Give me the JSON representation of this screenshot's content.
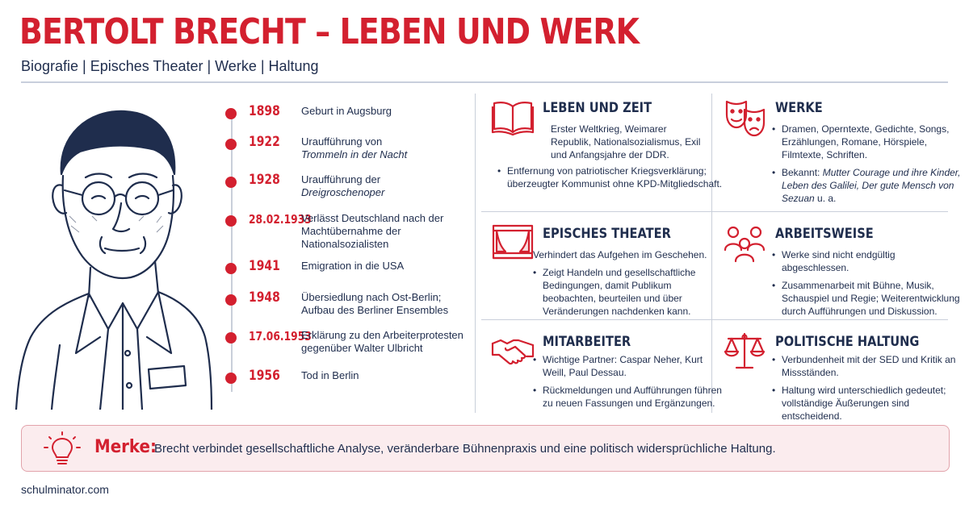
{
  "header": {
    "title": "BERTOLT BRECHT – LEBEN UND WERK",
    "subtitle": "Biografie | Episches Theater | Werke | Haltung"
  },
  "timeline": [
    {
      "year": "1898",
      "text": "Geburt in Augsburg",
      "italic": ""
    },
    {
      "year": "1922",
      "text": "Uraufführung von",
      "italic": "Trommeln in der Nacht"
    },
    {
      "year": "1928",
      "text": "Uraufführung der",
      "italic": "Dreigroschenoper"
    },
    {
      "year": "28.02.1933",
      "text": "Verlässt Deutschland nach der Machtübernahme der Nationalsozialisten",
      "italic": ""
    },
    {
      "year": "1941",
      "text": "Emigration in die USA",
      "italic": ""
    },
    {
      "year": "1948",
      "text": "Übersiedlung nach Ost-Berlin; Aufbau des Berliner Ensembles",
      "italic": ""
    },
    {
      "year": "17.06.1953",
      "text": "Erklärung zu den Arbeiterprotesten gegenüber Walter Ulbricht",
      "italic": ""
    },
    {
      "year": "1956",
      "text": "Tod in Berlin",
      "italic": ""
    }
  ],
  "cards": {
    "leben": {
      "title": "LEBEN UND ZEIT",
      "intro": "Erster Weltkrieg, Weimarer Republik, Nationalsozialismus, Exil und Anfangsjahre der DDR.",
      "bullet1": "Entfernung von patriotischer Kriegsverklärung; überzeugter Kommunist ohne KPD-Mitgliedschaft."
    },
    "werke": {
      "title": "WERKE",
      "bullet1": "Dramen, Operntexte, Gedichte, Songs, Erzählungen, Romane, Hörspiele, Filmtexte, Schriften.",
      "bullet2_prefix": "Bekannt: ",
      "bullet2_italic": "Mutter Courage und ihre Kinder, Leben des Galilei, Der gute Mensch von Sezuan",
      "bullet2_suffix": " u. a."
    },
    "episch": {
      "title": "EPISCHES THEATER",
      "intro": "Verhindert das Aufgehen im Geschehen.",
      "bullet1": "Zeigt Handeln und gesellschaftliche Bedingungen, damit Publikum beobachten, beurteilen und über Veränderungen nachdenken kann."
    },
    "arbeit": {
      "title": "ARBEITSWEISE",
      "bullet1": "Werke sind nicht endgültig abgeschlessen.",
      "bullet2": "Zusammenarbeit mit Bühne, Musik, Schauspiel und Regie; Weiterentwicklung durch Aufführungen und Diskussion."
    },
    "mitarbeiter": {
      "title": "MITARBEITER",
      "bullet1": "Wichtige Partner: Caspar Neher, Kurt Weill, Paul Dessau.",
      "bullet2": "Rückmeldungen und Aufführungen führen zu neuen Fassungen und Ergänzungen."
    },
    "politik": {
      "title": "POLITISCHE HALTUNG",
      "bullet1": "Verbundenheit mit der SED und Kritik an Missständen.",
      "bullet2": "Haltung wird unterschiedlich gedeutet; vollständige Äußerungen sind entscheidend."
    }
  },
  "merke": {
    "label": "Merke:",
    "text": "Brecht verbindet gesellschaftliche Analyse, veränderbare Bühnenpraxis und eine politisch widersprüchliche Haltung."
  },
  "footer": "schulminator.com",
  "colors": {
    "accent": "#d3202f",
    "navy": "#1f2d4d",
    "rule": "#c9cfda",
    "merke_bg": "#fbecee"
  }
}
